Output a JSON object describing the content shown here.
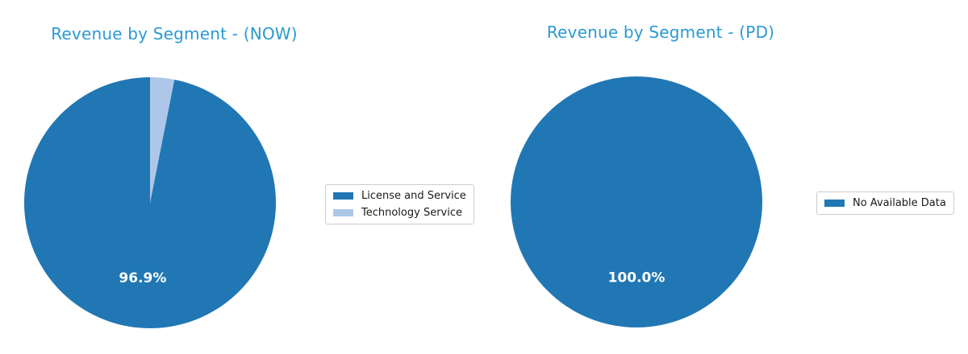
{
  "figure": {
    "background": "#ffffff",
    "title_color": "#2a9ad2",
    "autopct_color": "#ffffff"
  },
  "chart_data": [
    {
      "type": "pie",
      "title": "Revenue by Segment - (NOW)",
      "title_color": "#2a9ad2",
      "startangle": 90,
      "direction": "counterclockwise",
      "legend_position": "right",
      "slices": [
        {
          "label": "License and Service",
          "value": 96.9,
          "color": "#2077b4",
          "pct_label": "96.9%"
        },
        {
          "label": "Technology Service",
          "value": 3.1,
          "color": "#aec7e8",
          "pct_label": ""
        }
      ]
    },
    {
      "type": "pie",
      "title": "Revenue by Segment - (PD)",
      "title_color": "#2a9ad2",
      "startangle": 90,
      "direction": "counterclockwise",
      "legend_position": "right",
      "slices": [
        {
          "label": "No Available Data",
          "value": 100.0,
          "color": "#2077b4",
          "pct_label": "100.0%"
        }
      ]
    }
  ]
}
